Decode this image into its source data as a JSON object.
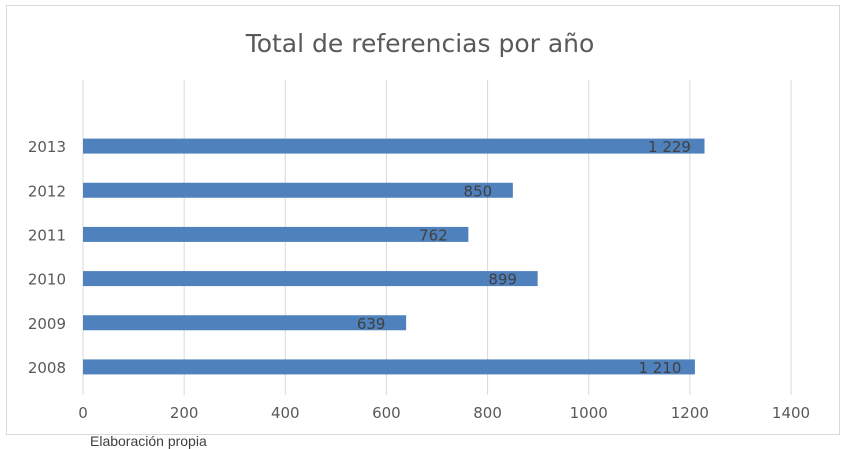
{
  "chart_data": {
    "type": "bar",
    "orientation": "horizontal",
    "title": "Total de referencias por año",
    "categories": [
      "2008",
      "2009",
      "2010",
      "2011",
      "2012",
      "2013"
    ],
    "values": [
      1210,
      639,
      899,
      762,
      850,
      1229
    ],
    "data_labels": [
      "1 210",
      "639",
      "899",
      "762",
      "850",
      "1 229"
    ],
    "xlim": [
      0,
      1400
    ],
    "x_ticks": [
      0,
      200,
      400,
      600,
      800,
      1000,
      1200,
      1400
    ],
    "grid": "vertical",
    "legend": "none",
    "bar_color": "#4f81bd",
    "grid_color": "#d9d9d9"
  },
  "footnote": "Elaboración propia"
}
